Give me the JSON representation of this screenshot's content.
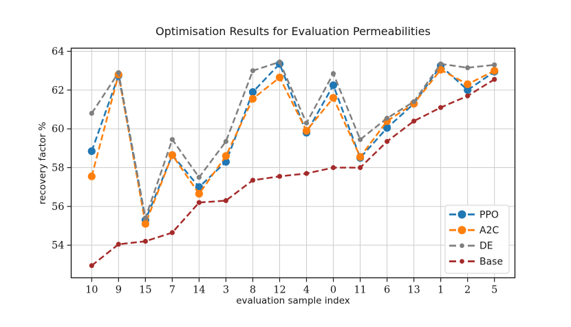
{
  "chart_data": {
    "type": "line",
    "title": "Optimisation Results for Evaluation Permeabilities",
    "xlabel": "evaluation sample index",
    "ylabel": "recovery factor %",
    "categories": [
      "10",
      "9",
      "15",
      "7",
      "14",
      "3",
      "8",
      "12",
      "4",
      "0",
      "11",
      "6",
      "13",
      "1",
      "2",
      "5"
    ],
    "yticks": [
      54,
      56,
      58,
      60,
      62,
      64
    ],
    "ylim": [
      52.32,
      64.16
    ],
    "grid": true,
    "line_style": "dashed",
    "legend_position": "lower right",
    "series": [
      {
        "name": "PPO",
        "color": "#1f77b4",
        "marker": "circle-large",
        "values": [
          58.85,
          62.75,
          55.3,
          58.65,
          57.0,
          58.3,
          61.9,
          63.35,
          59.8,
          62.25,
          58.5,
          60.05,
          61.3,
          63.25,
          62.0,
          62.95
        ]
      },
      {
        "name": "A2C",
        "color": "#ff7f0e",
        "marker": "circle-large",
        "values": [
          57.55,
          62.8,
          55.1,
          58.65,
          56.65,
          58.6,
          61.55,
          62.65,
          59.9,
          61.6,
          58.55,
          60.4,
          61.3,
          63.05,
          62.3,
          63.0
        ]
      },
      {
        "name": "DE",
        "color": "#7f7f7f",
        "marker": "circle-small",
        "values": [
          60.8,
          62.9,
          55.4,
          59.45,
          57.5,
          59.35,
          63.0,
          63.45,
          60.3,
          62.85,
          59.45,
          60.55,
          61.4,
          63.35,
          63.15,
          63.3
        ]
      },
      {
        "name": "Base",
        "color": "#a52a2a",
        "marker": "circle-small",
        "values": [
          52.95,
          54.05,
          54.2,
          54.65,
          56.2,
          56.3,
          57.35,
          57.55,
          57.7,
          58.0,
          58.0,
          59.35,
          60.4,
          61.1,
          61.7,
          62.55
        ]
      }
    ],
    "colors": {
      "axis": "#1a1a1a",
      "grid": "#cccccc",
      "background": "#ffffff",
      "legend_border": "#d9d9d9"
    }
  }
}
